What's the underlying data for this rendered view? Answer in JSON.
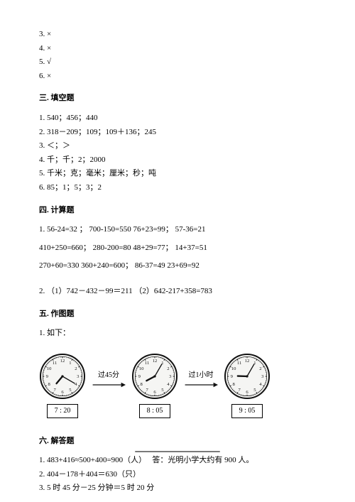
{
  "tf": {
    "items": [
      "3. ×",
      "4. ×",
      "5. √",
      "6. ×"
    ]
  },
  "sec3": {
    "title": "三. 填空题",
    "lines": [
      "1. 540；456；440",
      "2. 318－209；109；109＋136；245",
      "3. ＜；＞",
      "4. 千；千；2；2000",
      "5. 千米；克；毫米；厘米；秒；吨",
      "6. 85；1；5；3；2"
    ]
  },
  "sec4": {
    "title": "四. 计算题",
    "lines": [
      "1. 56-24=32 ；  700-150=550  76+23=99；       57-36=21",
      "410+250=660；    280-200=80    48+29=77；     14+37=51",
      "270+60=330    360+240=600；    86-37=49  23+69=92",
      "2. （1）742－432－99＝211  （2）642-217+358=783"
    ]
  },
  "sec5": {
    "title": "五. 作图题",
    "sub": "1. 如下：",
    "arrow1": "过45分",
    "arrow2": "过1小时",
    "times": [
      "7 : 20",
      "8 : 05",
      "9 : 05"
    ],
    "clock_face": "#f5f5f3",
    "clock_stroke": "#111111",
    "arrow_color": "#111111",
    "clocks": [
      {
        "hour_angle": 220,
        "min_angle": 120
      },
      {
        "hour_angle": 242,
        "min_angle": 30
      },
      {
        "hour_angle": 272,
        "min_angle": 30
      }
    ]
  },
  "sec6": {
    "title": "六. 解答题",
    "lines": [
      "1. 483+416≈500+400=900（人）   答：光明小学大约有 900 人。",
      "2. 404－178＋404＝630（只）",
      "3. 5 时 45 分－25 分钟＝5 时 20 分"
    ]
  }
}
